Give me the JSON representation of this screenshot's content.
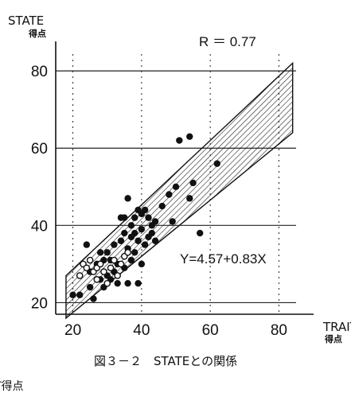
{
  "chart_data": {
    "type": "scatter",
    "ylabel": "STATE",
    "ylabel_sub": "得点",
    "xlabel": "TRAIT",
    "xlabel_sub": "得点",
    "xlim": [
      15,
      85
    ],
    "ylim": [
      17,
      86
    ],
    "x_ticks": [
      "20",
      "40",
      "60",
      "80"
    ],
    "y_ticks": [
      "20",
      "40",
      "60",
      "80"
    ],
    "grid": "horizontal",
    "annotations": {
      "r": "R ＝ 0.77",
      "equation": "Y=4.57+0.83X"
    },
    "band": {
      "upper": [
        [
          18,
          27
        ],
        [
          84,
          82
        ]
      ],
      "lower": [
        [
          18,
          16
        ],
        [
          84,
          64
        ]
      ]
    },
    "points": {
      "filled": [
        [
          20,
          22
        ],
        [
          22,
          22
        ],
        [
          24,
          35
        ],
        [
          25,
          28
        ],
        [
          25,
          24
        ],
        [
          26,
          21
        ],
        [
          27,
          30
        ],
        [
          28,
          26
        ],
        [
          28,
          33
        ],
        [
          29,
          24
        ],
        [
          29,
          31
        ],
        [
          30,
          27
        ],
        [
          30,
          33
        ],
        [
          31,
          26
        ],
        [
          31,
          31
        ],
        [
          32,
          28
        ],
        [
          32,
          35
        ],
        [
          33,
          25
        ],
        [
          33,
          30
        ],
        [
          34,
          36
        ],
        [
          34,
          42
        ],
        [
          35,
          29
        ],
        [
          35,
          38
        ],
        [
          35,
          42
        ],
        [
          36,
          34
        ],
        [
          36,
          47
        ],
        [
          36,
          25
        ],
        [
          37,
          31
        ],
        [
          37,
          37
        ],
        [
          37,
          40
        ],
        [
          38,
          33
        ],
        [
          38,
          38
        ],
        [
          38,
          42
        ],
        [
          39,
          25
        ],
        [
          39,
          36
        ],
        [
          39,
          44
        ],
        [
          40,
          30
        ],
        [
          40,
          39
        ],
        [
          40,
          43
        ],
        [
          41,
          35
        ],
        [
          41,
          44
        ],
        [
          42,
          37
        ],
        [
          42,
          42
        ],
        [
          43,
          38
        ],
        [
          43,
          40
        ],
        [
          44,
          36
        ],
        [
          44,
          41
        ],
        [
          46,
          45
        ],
        [
          48,
          48
        ],
        [
          49,
          41
        ],
        [
          50,
          50
        ],
        [
          51,
          62
        ],
        [
          54,
          63
        ],
        [
          54,
          47
        ],
        [
          55,
          51
        ],
        [
          57,
          38
        ],
        [
          62,
          56
        ]
      ],
      "open": [
        [
          22,
          27
        ],
        [
          23,
          30
        ],
        [
          24,
          29
        ],
        [
          25,
          31
        ],
        [
          26,
          28
        ],
        [
          27,
          26
        ],
        [
          27,
          29
        ],
        [
          28,
          30
        ],
        [
          29,
          28
        ],
        [
          30,
          25
        ],
        [
          31,
          29
        ],
        [
          32,
          31
        ],
        [
          33,
          27
        ],
        [
          34,
          30
        ],
        [
          35,
          32
        ],
        [
          36,
          33
        ]
      ]
    },
    "caption": "図３－２　STATEとの関係",
    "footer": "T得点"
  }
}
